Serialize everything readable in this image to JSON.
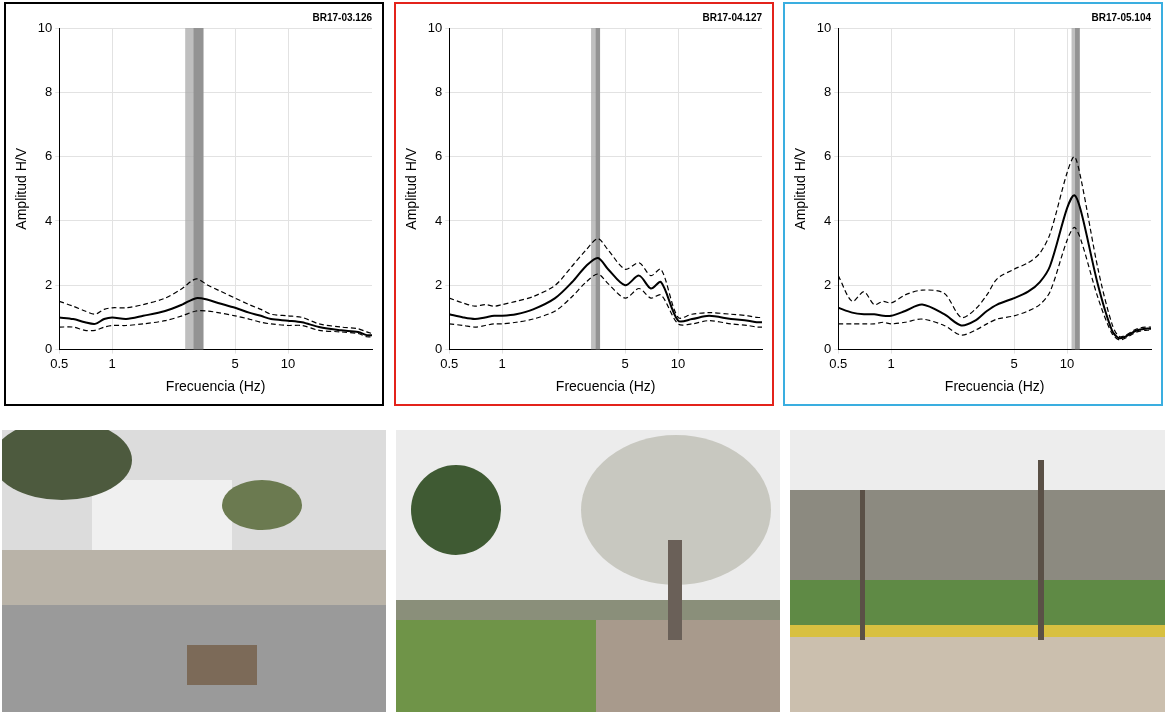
{
  "chart_data": [
    {
      "type": "line",
      "title": "BR17-03.126",
      "x_label": "Frecuencia (Hz)",
      "y_label": "Amplitud H/V",
      "log": "x",
      "grid": true,
      "xlim": [
        0.5,
        30
      ],
      "xticks": [
        0.5,
        1,
        5,
        10
      ],
      "ylim": [
        0,
        10
      ],
      "yticks": [
        0,
        2,
        4,
        6,
        8,
        10
      ],
      "bands": [
        {
          "from": 2.6,
          "to": 3.3
        },
        {
          "from": 2.9,
          "to": 3.3
        }
      ],
      "x": [
        0.5,
        0.6,
        0.7,
        0.8,
        0.9,
        1,
        1.2,
        1.5,
        2,
        2.5,
        3,
        3.5,
        4,
        5,
        6,
        7,
        8,
        10,
        12,
        15,
        20,
        25,
        28,
        30
      ],
      "series": [
        {
          "color": "#000000",
          "line_style": "solid",
          "values": [
            1.0,
            0.95,
            0.85,
            0.8,
            0.95,
            1.0,
            0.95,
            1.05,
            1.2,
            1.4,
            1.6,
            1.55,
            1.45,
            1.3,
            1.15,
            1.05,
            0.95,
            0.9,
            0.85,
            0.7,
            0.6,
            0.55,
            0.45,
            0.45
          ]
        },
        {
          "color": "#000000",
          "line_style": "dashed",
          "values": [
            1.5,
            1.35,
            1.2,
            1.1,
            1.25,
            1.3,
            1.3,
            1.4,
            1.6,
            1.9,
            2.2,
            2.0,
            1.85,
            1.6,
            1.4,
            1.25,
            1.1,
            1.05,
            1.0,
            0.8,
            0.7,
            0.65,
            0.55,
            0.5
          ]
        },
        {
          "color": "#000000",
          "line_style": "dashed",
          "values": [
            0.7,
            0.7,
            0.6,
            0.6,
            0.7,
            0.75,
            0.75,
            0.8,
            0.9,
            1.05,
            1.2,
            1.2,
            1.15,
            1.05,
            0.95,
            0.85,
            0.8,
            0.75,
            0.75,
            0.6,
            0.55,
            0.5,
            0.4,
            0.4
          ]
        }
      ]
    },
    {
      "type": "line",
      "title": "BR17-04.127",
      "x_label": "Frecuencia (Hz)",
      "y_label": "Amplitud H/V",
      "log": "x",
      "grid": true,
      "xlim": [
        0.5,
        30
      ],
      "xticks": [
        0.5,
        1,
        5,
        10
      ],
      "ylim": [
        0,
        10
      ],
      "yticks": [
        0,
        2,
        4,
        6,
        8,
        10
      ],
      "bands": [
        {
          "from": 3.2,
          "to": 3.6
        },
        {
          "from": 3.4,
          "to": 3.6
        }
      ],
      "x": [
        0.5,
        0.6,
        0.7,
        0.8,
        0.9,
        1,
        1.2,
        1.5,
        2,
        2.5,
        3,
        3.5,
        4,
        5,
        6,
        7,
        8,
        10,
        12,
        15,
        20,
        25,
        28,
        30
      ],
      "series": [
        {
          "color": "#000000",
          "line_style": "solid",
          "values": [
            1.1,
            1.0,
            0.95,
            1.0,
            1.05,
            1.05,
            1.1,
            1.25,
            1.6,
            2.1,
            2.6,
            2.85,
            2.5,
            2.0,
            2.3,
            1.9,
            2.1,
            0.9,
            0.95,
            1.05,
            0.95,
            0.9,
            0.85,
            0.85
          ]
        },
        {
          "color": "#000000",
          "line_style": "dashed",
          "values": [
            1.6,
            1.45,
            1.35,
            1.4,
            1.35,
            1.4,
            1.5,
            1.65,
            2.0,
            2.6,
            3.1,
            3.45,
            3.1,
            2.5,
            2.7,
            2.3,
            2.5,
            1.0,
            1.1,
            1.15,
            1.1,
            1.05,
            1.0,
            1.0
          ]
        },
        {
          "color": "#000000",
          "line_style": "dashed",
          "values": [
            0.8,
            0.75,
            0.7,
            0.75,
            0.8,
            0.8,
            0.85,
            0.95,
            1.2,
            1.65,
            2.1,
            2.35,
            2.05,
            1.6,
            1.9,
            1.6,
            1.7,
            0.8,
            0.8,
            0.9,
            0.8,
            0.75,
            0.7,
            0.7
          ]
        }
      ]
    },
    {
      "type": "line",
      "title": "BR17-05.104",
      "x_label": "Frecuencia (Hz)",
      "y_label": "Amplitud H/V",
      "log": "x",
      "grid": true,
      "xlim": [
        0.5,
        30
      ],
      "xticks": [
        0.5,
        1,
        5,
        10
      ],
      "ylim": [
        0,
        10
      ],
      "yticks": [
        0,
        2,
        4,
        6,
        8,
        10
      ],
      "bands": [
        {
          "from": 10.6,
          "to": 11.8
        },
        {
          "from": 11.1,
          "to": 11.8
        }
      ],
      "x": [
        0.5,
        0.6,
        0.7,
        0.8,
        0.9,
        1,
        1.2,
        1.5,
        2,
        2.5,
        3,
        3.5,
        4,
        5,
        6,
        7,
        8,
        10,
        11,
        12,
        15,
        18,
        20,
        25,
        28,
        30
      ],
      "series": [
        {
          "color": "#000000",
          "line_style": "solid",
          "values": [
            1.3,
            1.15,
            1.1,
            1.1,
            1.05,
            1.05,
            1.2,
            1.4,
            1.1,
            0.75,
            0.9,
            1.2,
            1.4,
            1.6,
            1.8,
            2.1,
            2.6,
            4.4,
            4.8,
            4.3,
            2.0,
            0.6,
            0.35,
            0.6,
            0.65,
            0.65
          ]
        },
        {
          "color": "#000000",
          "line_style": "dashed",
          "values": [
            2.3,
            1.5,
            1.8,
            1.4,
            1.5,
            1.45,
            1.7,
            1.85,
            1.75,
            1.0,
            1.25,
            1.7,
            2.2,
            2.5,
            2.7,
            3.0,
            3.6,
            5.5,
            6.0,
            5.3,
            2.5,
            0.8,
            0.4,
            0.65,
            0.7,
            0.7
          ]
        },
        {
          "color": "#000000",
          "line_style": "dashed",
          "values": [
            0.8,
            0.8,
            0.8,
            0.8,
            0.85,
            0.8,
            0.85,
            0.95,
            0.75,
            0.45,
            0.6,
            0.8,
            0.95,
            1.05,
            1.2,
            1.4,
            1.8,
            3.4,
            3.8,
            3.4,
            1.6,
            0.5,
            0.3,
            0.55,
            0.6,
            0.6
          ]
        }
      ]
    }
  ]
}
